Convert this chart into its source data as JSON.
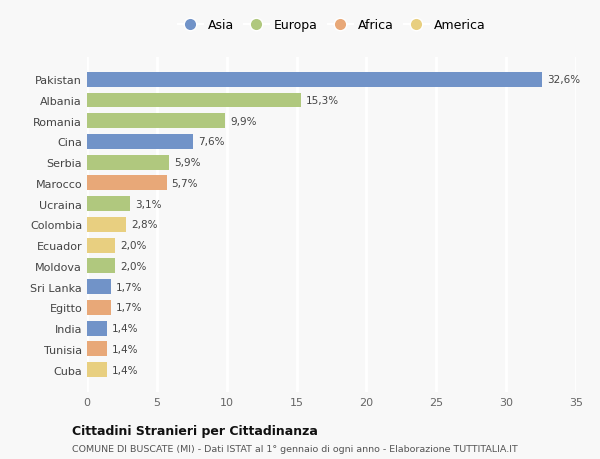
{
  "categories": [
    "Pakistan",
    "Albania",
    "Romania",
    "Cina",
    "Serbia",
    "Marocco",
    "Ucraina",
    "Colombia",
    "Ecuador",
    "Moldova",
    "Sri Lanka",
    "Egitto",
    "India",
    "Tunisia",
    "Cuba"
  ],
  "values": [
    32.6,
    15.3,
    9.9,
    7.6,
    5.9,
    5.7,
    3.1,
    2.8,
    2.0,
    2.0,
    1.7,
    1.7,
    1.4,
    1.4,
    1.4
  ],
  "labels": [
    "32,6%",
    "15,3%",
    "9,9%",
    "7,6%",
    "5,9%",
    "5,7%",
    "3,1%",
    "2,8%",
    "2,0%",
    "2,0%",
    "1,7%",
    "1,7%",
    "1,4%",
    "1,4%",
    "1,4%"
  ],
  "continents": [
    "Asia",
    "Europa",
    "Europa",
    "Asia",
    "Europa",
    "Africa",
    "Europa",
    "America",
    "America",
    "Europa",
    "Asia",
    "Africa",
    "Asia",
    "Africa",
    "America"
  ],
  "continent_colors": {
    "Asia": "#7193c8",
    "Europa": "#b0c87e",
    "Africa": "#e8a878",
    "America": "#e8cf80"
  },
  "legend_order": [
    "Asia",
    "Europa",
    "Africa",
    "America"
  ],
  "title_main": "Cittadini Stranieri per Cittadinanza",
  "title_sub": "COMUNE DI BUSCATE (MI) - Dati ISTAT al 1° gennaio di ogni anno - Elaborazione TUTTITALIA.IT",
  "xlim": [
    0,
    35
  ],
  "xticks": [
    0,
    5,
    10,
    15,
    20,
    25,
    30,
    35
  ],
  "background_color": "#f8f8f8",
  "grid_color": "#ffffff",
  "bar_height": 0.72
}
